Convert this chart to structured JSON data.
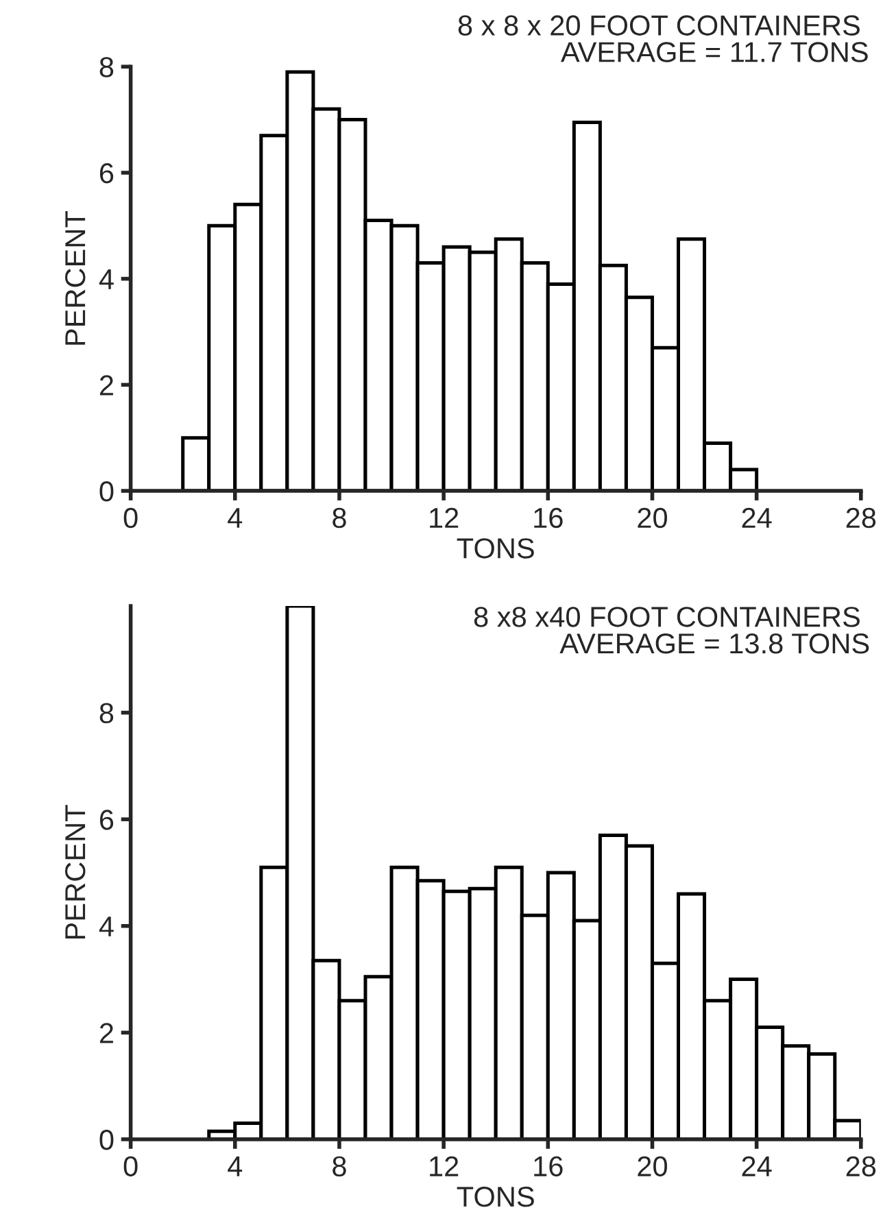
{
  "chart_data": [
    {
      "type": "histogram",
      "title": "8 x 8 x 20 FOOT CONTAINERS",
      "subtitle": "AVERAGE = 11.7 TONS",
      "xlabel": "TONS",
      "ylabel": "PERCENT",
      "bins": [
        0,
        1,
        2,
        3,
        4,
        5,
        6,
        7,
        8,
        9,
        10,
        11,
        12,
        13,
        14,
        15,
        16,
        17,
        18,
        19,
        20,
        21,
        22,
        23,
        24,
        25,
        26,
        27,
        28
      ],
      "values": [
        0,
        0,
        1.0,
        5.0,
        5.4,
        6.7,
        7.9,
        7.2,
        7.0,
        5.1,
        5.0,
        4.3,
        4.6,
        4.5,
        4.75,
        4.3,
        3.9,
        6.95,
        4.25,
        3.65,
        2.7,
        4.75,
        0.9,
        0.4,
        0,
        0,
        0,
        0
      ],
      "color": "#ffffff",
      "xlim": [
        0,
        28
      ],
      "ylim": [
        0,
        8
      ],
      "xticks": [
        0,
        4,
        8,
        12,
        16,
        20,
        24,
        28
      ],
      "yticks": [
        0,
        2,
        4,
        6,
        8
      ],
      "grid": false
    },
    {
      "type": "histogram",
      "title": "8 x8 x40 FOOT CONTAINERS",
      "subtitle": "AVERAGE = 13.8 TONS",
      "xlabel": "TONS",
      "ylabel": "PERCENT",
      "bins": [
        0,
        1,
        2,
        3,
        4,
        5,
        6,
        7,
        8,
        9,
        10,
        11,
        12,
        13,
        14,
        15,
        16,
        17,
        18,
        19,
        20,
        21,
        22,
        23,
        24,
        25,
        26,
        27,
        28
      ],
      "values": [
        0,
        0,
        0,
        0.15,
        0.3,
        5.1,
        10.0,
        3.35,
        2.6,
        3.05,
        5.1,
        4.85,
        4.65,
        4.7,
        5.1,
        4.2,
        5.0,
        4.1,
        5.7,
        5.5,
        3.3,
        4.6,
        2.6,
        3.0,
        2.1,
        1.75,
        1.6,
        0.35
      ],
      "color": "#ffffff",
      "xlim": [
        0,
        28
      ],
      "ylim": [
        0,
        10
      ],
      "xticks": [
        0,
        4,
        8,
        12,
        16,
        20,
        24,
        28
      ],
      "yticks": [
        0,
        2,
        4,
        6,
        8
      ],
      "grid": false
    }
  ]
}
